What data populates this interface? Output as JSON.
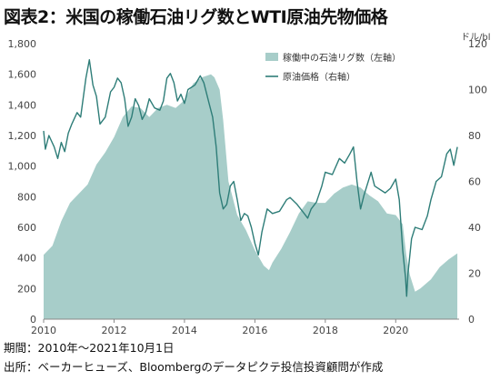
{
  "title": "図表2：米国の稼働石油リグ数とWTI原油先物価格",
  "notes": {
    "period": "期間：2010年～2021年10月1日",
    "source": "出所：ベーカーヒューズ、Bloombergのデータピクテ投信投資顧問が作成"
  },
  "colors": {
    "rig_area": "#a7cdc9",
    "wti_line": "#2e7d78",
    "axis": "#888888"
  },
  "chart_data": {
    "type": "area",
    "title": "図表2：米国の稼働石油リグ数とWTI原油先物価格",
    "x_ticks": [
      "2010",
      "2012",
      "2014",
      "2016",
      "2018",
      "2020"
    ],
    "xlim": [
      2010,
      2021.8
    ],
    "left_axis": {
      "label": "",
      "ticks": [
        "0",
        "200",
        "400",
        "600",
        "800",
        "1,000",
        "1,200",
        "1,400",
        "1,600",
        "1,800"
      ],
      "ylim": [
        0,
        1800
      ]
    },
    "right_axis": {
      "unit": "ドル/bl",
      "ticks": [
        "0",
        "20",
        "40",
        "60",
        "80",
        "100",
        "120"
      ],
      "ylim": [
        0,
        120
      ]
    },
    "legend": {
      "position": "top-right",
      "entries": [
        "稼働中の石油リグ数（左軸）",
        "原油価格（右軸）"
      ]
    },
    "grid": false,
    "series": [
      {
        "name": "稼働中の石油リグ数（左軸）",
        "type": "area",
        "axis": "left",
        "points": [
          [
            2010.0,
            420
          ],
          [
            2010.25,
            480
          ],
          [
            2010.5,
            640
          ],
          [
            2010.75,
            760
          ],
          [
            2011.0,
            820
          ],
          [
            2011.25,
            880
          ],
          [
            2011.5,
            1010
          ],
          [
            2011.75,
            1090
          ],
          [
            2012.0,
            1190
          ],
          [
            2012.25,
            1320
          ],
          [
            2012.5,
            1390
          ],
          [
            2012.75,
            1380
          ],
          [
            2013.0,
            1320
          ],
          [
            2013.25,
            1380
          ],
          [
            2013.5,
            1400
          ],
          [
            2013.75,
            1380
          ],
          [
            2014.0,
            1430
          ],
          [
            2014.25,
            1540
          ],
          [
            2014.5,
            1580
          ],
          [
            2014.75,
            1600
          ],
          [
            2014.85,
            1580
          ],
          [
            2015.0,
            1500
          ],
          [
            2015.1,
            1300
          ],
          [
            2015.25,
            900
          ],
          [
            2015.5,
            680
          ],
          [
            2015.75,
            580
          ],
          [
            2016.0,
            450
          ],
          [
            2016.25,
            350
          ],
          [
            2016.4,
            320
          ],
          [
            2016.5,
            370
          ],
          [
            2016.75,
            460
          ],
          [
            2017.0,
            570
          ],
          [
            2017.25,
            690
          ],
          [
            2017.5,
            770
          ],
          [
            2017.75,
            760
          ],
          [
            2018.0,
            760
          ],
          [
            2018.25,
            820
          ],
          [
            2018.5,
            860
          ],
          [
            2018.75,
            880
          ],
          [
            2019.0,
            860
          ],
          [
            2019.25,
            810
          ],
          [
            2019.5,
            770
          ],
          [
            2019.75,
            690
          ],
          [
            2020.0,
            680
          ],
          [
            2020.2,
            620
          ],
          [
            2020.3,
            420
          ],
          [
            2020.4,
            290
          ],
          [
            2020.55,
            180
          ],
          [
            2020.7,
            200
          ],
          [
            2021.0,
            260
          ],
          [
            2021.25,
            340
          ],
          [
            2021.5,
            390
          ],
          [
            2021.75,
            430
          ]
        ]
      },
      {
        "name": "原油価格（右軸）",
        "type": "line",
        "axis": "right",
        "points": [
          [
            2010.0,
            82
          ],
          [
            2010.05,
            74
          ],
          [
            2010.15,
            80
          ],
          [
            2010.3,
            75
          ],
          [
            2010.4,
            70
          ],
          [
            2010.5,
            77
          ],
          [
            2010.6,
            73
          ],
          [
            2010.7,
            81
          ],
          [
            2010.8,
            85
          ],
          [
            2010.95,
            90
          ],
          [
            2011.05,
            88
          ],
          [
            2011.2,
            105
          ],
          [
            2011.3,
            113
          ],
          [
            2011.4,
            102
          ],
          [
            2011.5,
            97
          ],
          [
            2011.6,
            85
          ],
          [
            2011.75,
            88
          ],
          [
            2011.9,
            99
          ],
          [
            2012.0,
            101
          ],
          [
            2012.1,
            105
          ],
          [
            2012.2,
            103
          ],
          [
            2012.3,
            96
          ],
          [
            2012.4,
            84
          ],
          [
            2012.5,
            88
          ],
          [
            2012.6,
            96
          ],
          [
            2012.7,
            93
          ],
          [
            2012.8,
            87
          ],
          [
            2012.9,
            90
          ],
          [
            2013.0,
            96
          ],
          [
            2013.15,
            92
          ],
          [
            2013.3,
            91
          ],
          [
            2013.4,
            95
          ],
          [
            2013.5,
            105
          ],
          [
            2013.6,
            107
          ],
          [
            2013.7,
            103
          ],
          [
            2013.8,
            95
          ],
          [
            2013.9,
            98
          ],
          [
            2014.0,
            94
          ],
          [
            2014.1,
            100
          ],
          [
            2014.3,
            102
          ],
          [
            2014.45,
            106
          ],
          [
            2014.55,
            103
          ],
          [
            2014.7,
            94
          ],
          [
            2014.8,
            88
          ],
          [
            2014.9,
            75
          ],
          [
            2015.0,
            55
          ],
          [
            2015.1,
            48
          ],
          [
            2015.2,
            50
          ],
          [
            2015.3,
            58
          ],
          [
            2015.4,
            60
          ],
          [
            2015.5,
            52
          ],
          [
            2015.6,
            43
          ],
          [
            2015.7,
            46
          ],
          [
            2015.8,
            45
          ],
          [
            2015.9,
            40
          ],
          [
            2016.0,
            33
          ],
          [
            2016.1,
            28
          ],
          [
            2016.2,
            38
          ],
          [
            2016.35,
            48
          ],
          [
            2016.5,
            46
          ],
          [
            2016.7,
            47
          ],
          [
            2016.9,
            52
          ],
          [
            2017.0,
            53
          ],
          [
            2017.2,
            50
          ],
          [
            2017.4,
            46
          ],
          [
            2017.5,
            44
          ],
          [
            2017.6,
            48
          ],
          [
            2017.75,
            51
          ],
          [
            2017.9,
            58
          ],
          [
            2018.0,
            64
          ],
          [
            2018.2,
            63
          ],
          [
            2018.4,
            70
          ],
          [
            2018.55,
            68
          ],
          [
            2018.7,
            72
          ],
          [
            2018.8,
            75
          ],
          [
            2018.9,
            60
          ],
          [
            2019.0,
            48
          ],
          [
            2019.1,
            54
          ],
          [
            2019.3,
            64
          ],
          [
            2019.4,
            58
          ],
          [
            2019.5,
            57
          ],
          [
            2019.7,
            55
          ],
          [
            2019.85,
            57
          ],
          [
            2020.0,
            61
          ],
          [
            2020.1,
            52
          ],
          [
            2020.2,
            30
          ],
          [
            2020.28,
            18
          ],
          [
            2020.31,
            10
          ],
          [
            2020.35,
            20
          ],
          [
            2020.45,
            35
          ],
          [
            2020.55,
            40
          ],
          [
            2020.75,
            39
          ],
          [
            2020.9,
            45
          ],
          [
            2021.0,
            52
          ],
          [
            2021.15,
            60
          ],
          [
            2021.3,
            62
          ],
          [
            2021.45,
            72
          ],
          [
            2021.55,
            74
          ],
          [
            2021.65,
            67
          ],
          [
            2021.75,
            75
          ]
        ]
      }
    ]
  }
}
